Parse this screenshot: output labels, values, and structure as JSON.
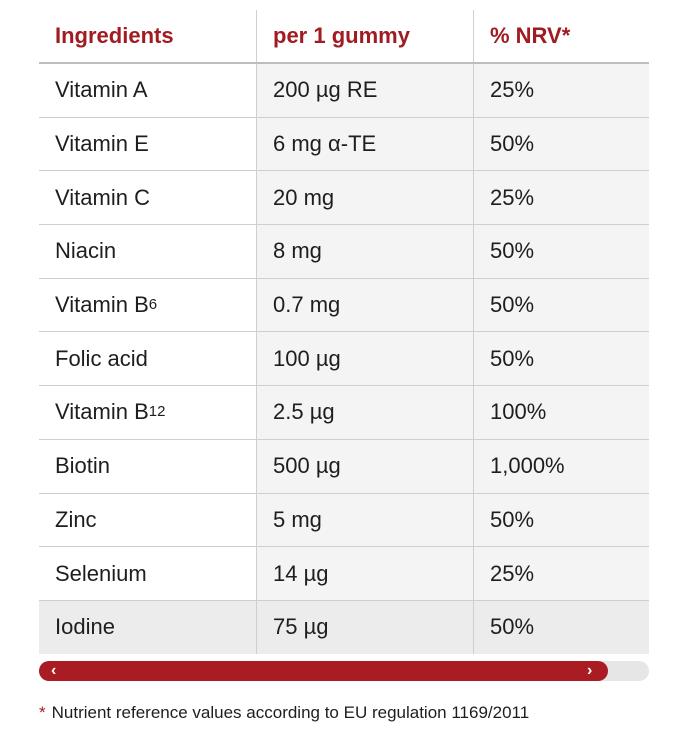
{
  "table": {
    "headers": [
      "Ingredients",
      "per 1 gummy",
      "% NRV*"
    ],
    "rows": [
      {
        "name": "Vitamin A",
        "sub": "",
        "amount": "200 µg RE",
        "nrv": "25%"
      },
      {
        "name": "Vitamin E",
        "sub": "",
        "amount": "6 mg α-TE",
        "nrv": "50%"
      },
      {
        "name": "Vitamin C",
        "sub": "",
        "amount": "20 mg",
        "nrv": "25%"
      },
      {
        "name": "Niacin",
        "sub": "",
        "amount": "8 mg",
        "nrv": "50%"
      },
      {
        "name": "Vitamin B",
        "sub": "6",
        "amount": "0.7 mg",
        "nrv": "50%"
      },
      {
        "name": "Folic acid",
        "sub": "",
        "amount": "100 µg",
        "nrv": "50%"
      },
      {
        "name": "Vitamin B",
        "sub": "12",
        "amount": "2.5 µg",
        "nrv": "100%"
      },
      {
        "name": "Biotin",
        "sub": "",
        "amount": "500 µg",
        "nrv": "1,000%"
      },
      {
        "name": "Zinc",
        "sub": "",
        "amount": "5 mg",
        "nrv": "50%"
      },
      {
        "name": "Selenium",
        "sub": "",
        "amount": "14 µg",
        "nrv": "25%"
      },
      {
        "name": "Iodine",
        "sub": "",
        "amount": "75 µg",
        "nrv": "50%"
      }
    ]
  },
  "scrollbar": {
    "left_arrow": "‹",
    "right_arrow": "›",
    "thumb_color": "#a91c23"
  },
  "footnote": {
    "star": "*",
    "text": "Nutrient reference values according to EU regulation 1169/2011"
  },
  "colors": {
    "accent": "#a01c22"
  }
}
